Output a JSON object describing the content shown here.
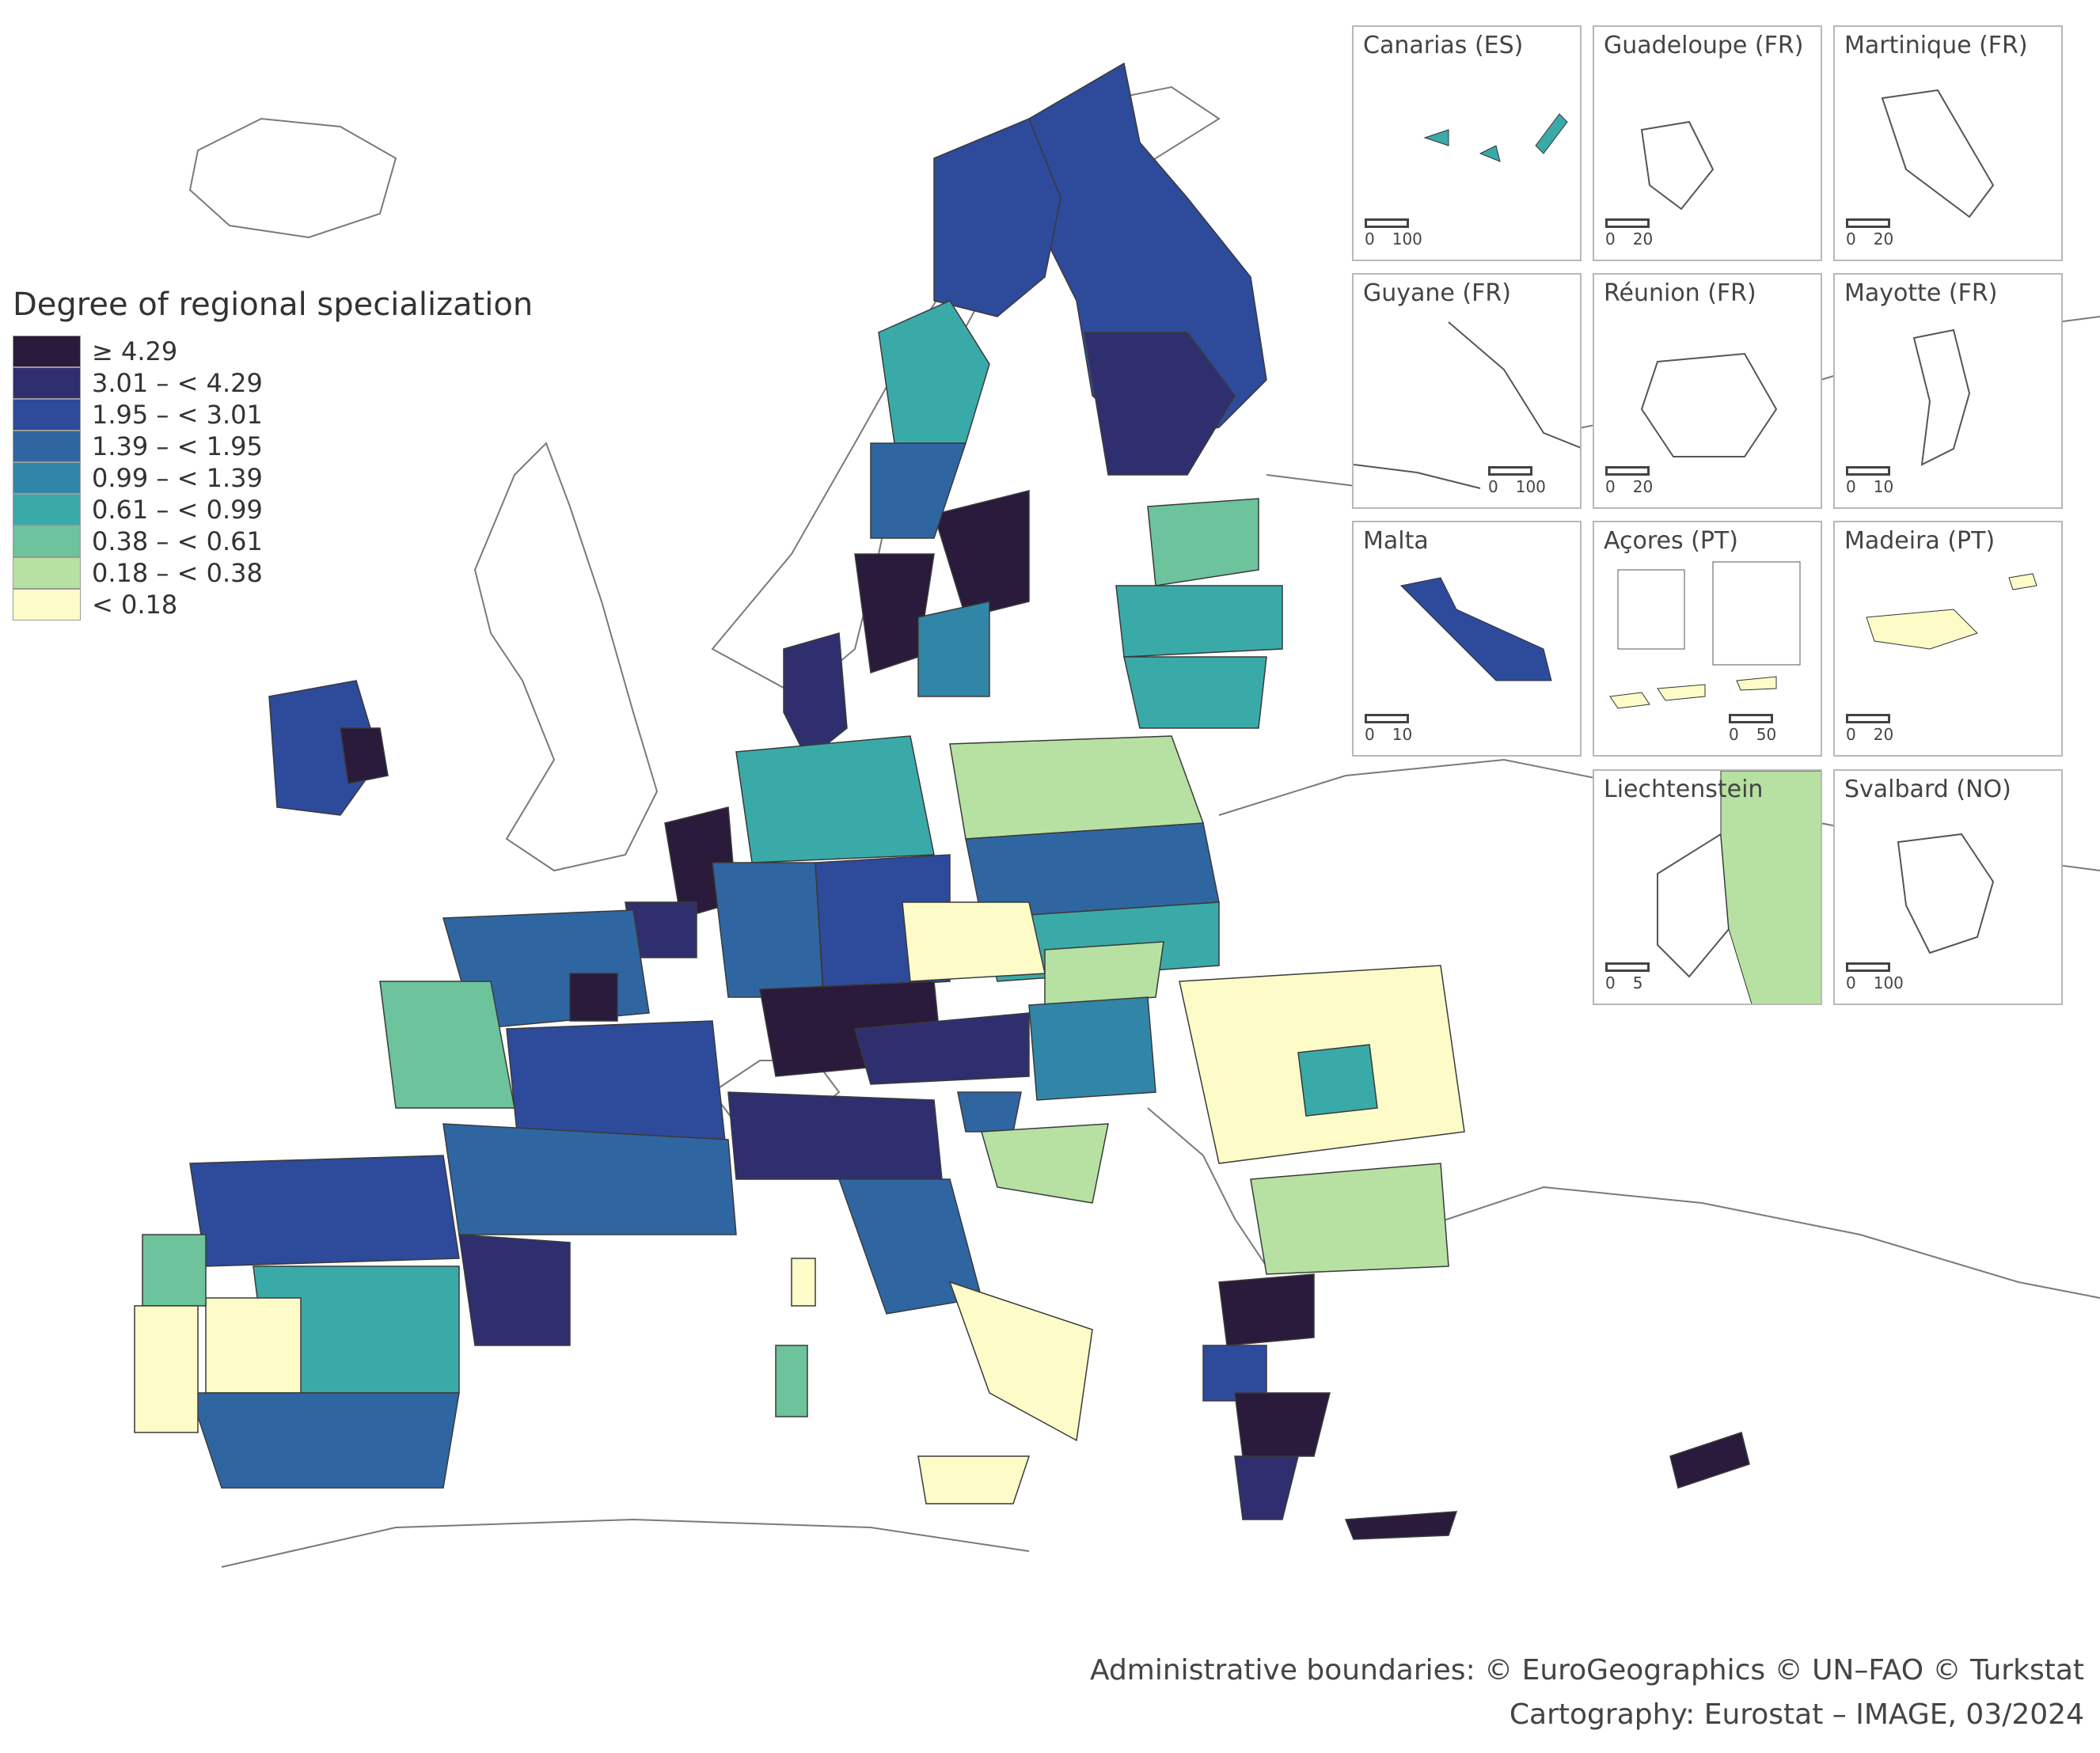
{
  "legend": {
    "title": "Degree of regional specialization",
    "classes": [
      {
        "label": "≥ 4.29",
        "color": "#2a1a3c"
      },
      {
        "label": "3.01 – < 4.29",
        "color": "#2f2f6f"
      },
      {
        "label": "1.95 – < 3.01",
        "color": "#2e4a9a"
      },
      {
        "label": "1.39 – < 1.95",
        "color": "#2f66a2"
      },
      {
        "label": "0.99 – < 1.39",
        "color": "#3186a8"
      },
      {
        "label": "0.61 – < 0.99",
        "color": "#3aaaa8"
      },
      {
        "label": "0.38 – < 0.61",
        "color": "#6cc39c"
      },
      {
        "label": "0.18 – < 0.38",
        "color": "#b6e1a2"
      },
      {
        "label": "< 0.18",
        "color": "#fdfcc8"
      }
    ]
  },
  "insets": [
    {
      "title": "Canarias (ES)",
      "scale": [
        "0",
        "100"
      ]
    },
    {
      "title": "Guadeloupe (FR)",
      "scale": [
        "0",
        "20"
      ]
    },
    {
      "title": "Martinique (FR)",
      "scale": [
        "0",
        "20"
      ]
    },
    {
      "title": "Guyane (FR)",
      "scale": [
        "0",
        "100"
      ]
    },
    {
      "title": "Réunion (FR)",
      "scale": [
        "0",
        "20"
      ]
    },
    {
      "title": "Mayotte (FR)",
      "scale": [
        "0",
        "10"
      ]
    },
    {
      "title": "Malta",
      "scale": [
        "0",
        "10"
      ]
    },
    {
      "title": "Açores (PT)",
      "scale": [
        "0",
        "50"
      ]
    },
    {
      "title": "Madeira (PT)",
      "scale": [
        "0",
        "20"
      ]
    },
    {
      "title": "Liechtenstein",
      "scale": [
        "0",
        "5"
      ]
    },
    {
      "title": "Svalbard (NO)",
      "scale": [
        "0",
        "100"
      ]
    }
  ],
  "credits": {
    "line1": "Administrative boundaries: © EuroGeographics © UN–FAO © Turkstat",
    "line2": "Cartography: Eurostat – IMAGE, 03/2024"
  }
}
